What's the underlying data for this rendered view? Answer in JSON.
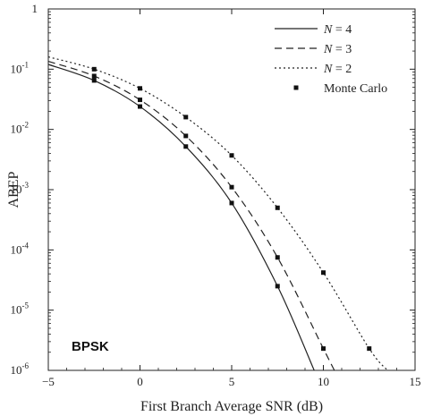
{
  "chart_data": {
    "type": "line",
    "xlabel": "First Branch Average SNR (dB)",
    "ylabel": "ABEP",
    "xlim": [
      -5,
      15
    ],
    "ylim": [
      1e-06,
      1
    ],
    "yscale": "log",
    "x_ticks": [
      -5,
      0,
      5,
      10,
      15
    ],
    "y_ticks": [
      {
        "value": 1,
        "base": "1",
        "exp": ""
      },
      {
        "value": 0.1,
        "base": "10",
        "exp": "-1"
      },
      {
        "value": 0.01,
        "base": "10",
        "exp": "-2"
      },
      {
        "value": 0.001,
        "base": "10",
        "exp": "-3"
      },
      {
        "value": 0.0001,
        "base": "10",
        "exp": "-4"
      },
      {
        "value": 1e-05,
        "base": "10",
        "exp": "-5"
      },
      {
        "value": 1e-06,
        "base": "10",
        "exp": "-6"
      }
    ],
    "annotation": "BPSK",
    "legend_position": "top-right",
    "grid": false,
    "series": [
      {
        "name": "N = 4",
        "style": "solid",
        "x": [
          -5,
          -2.5,
          0,
          2.5,
          5,
          7.5,
          9.5
        ],
        "y": [
          0.12,
          0.065,
          0.024,
          0.0052,
          0.0006,
          2.5e-05,
          1e-06
        ]
      },
      {
        "name": "N = 3",
        "style": "dashed",
        "x": [
          -5,
          -2.5,
          0,
          2.5,
          5,
          7.5,
          10,
          10.6
        ],
        "y": [
          0.135,
          0.077,
          0.031,
          0.0078,
          0.0011,
          7.5e-05,
          2.3e-06,
          1e-06
        ]
      },
      {
        "name": "N = 2",
        "style": "dotted",
        "x": [
          -5,
          -2.5,
          0,
          2.5,
          5,
          7.5,
          10,
          12.5,
          13.5
        ],
        "y": [
          0.16,
          0.1,
          0.048,
          0.016,
          0.0037,
          0.0005,
          4.2e-05,
          2.3e-06,
          1e-06
        ]
      },
      {
        "name": "Monte Carlo",
        "style": "markers",
        "points": [
          [
            -2.5,
            0.065
          ],
          [
            0,
            0.024
          ],
          [
            2.5,
            0.0052
          ],
          [
            5,
            0.0006
          ],
          [
            7.5,
            2.5e-05
          ],
          [
            -2.5,
            0.077
          ],
          [
            0,
            0.031
          ],
          [
            2.5,
            0.0078
          ],
          [
            5,
            0.0011
          ],
          [
            7.5,
            7.5e-05
          ],
          [
            10,
            2.3e-06
          ],
          [
            -2.5,
            0.1
          ],
          [
            0,
            0.048
          ],
          [
            2.5,
            0.016
          ],
          [
            5,
            0.0037
          ],
          [
            7.5,
            0.0005
          ],
          [
            10,
            4.2e-05
          ],
          [
            12.5,
            2.3e-06
          ]
        ]
      }
    ],
    "legend": [
      {
        "italic": "N",
        "rest": " = 4",
        "style": "solid"
      },
      {
        "italic": "N",
        "rest": " = 3",
        "style": "dashed"
      },
      {
        "italic": "N",
        "rest": " = 2",
        "style": "dotted"
      },
      {
        "italic": "",
        "rest": "Monte Carlo",
        "style": "markers"
      }
    ]
  }
}
